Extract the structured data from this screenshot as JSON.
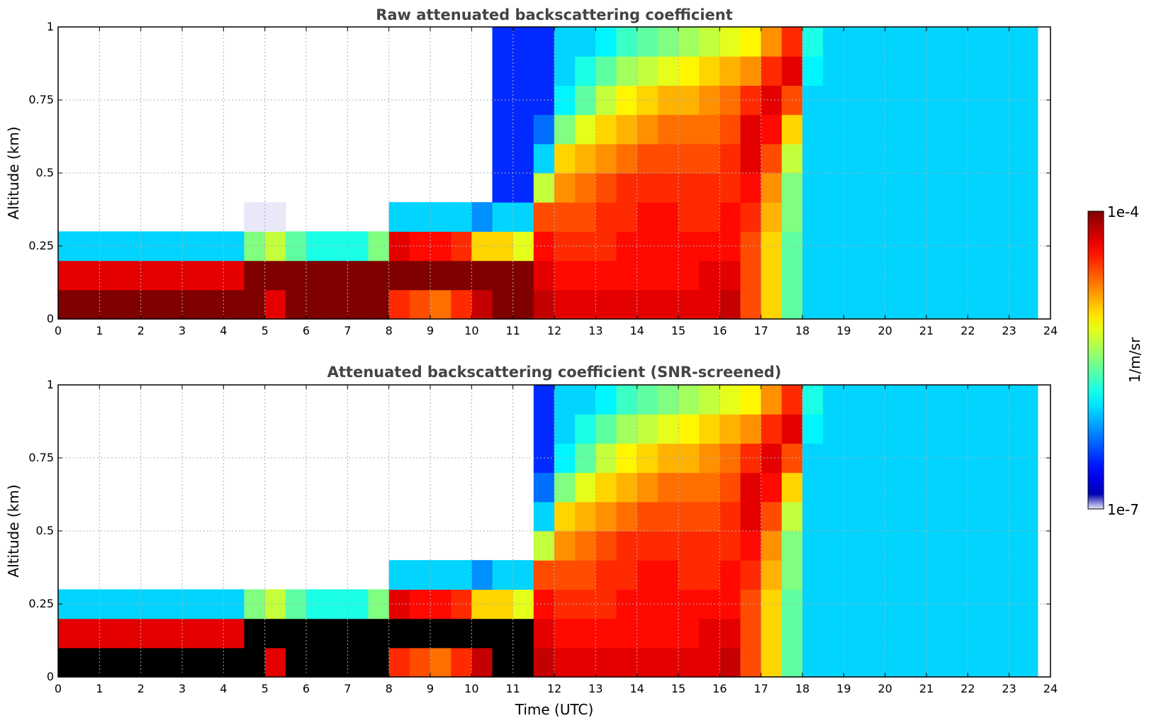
{
  "chart_data": [
    {
      "type": "heatmap",
      "title": "Raw attenuated backscattering coefficient",
      "xlabel": "",
      "ylabel": "Altitude (km)",
      "xlim": [
        0,
        24
      ],
      "ylim": [
        0,
        1
      ],
      "x_ticks": [
        "0",
        "1",
        "2",
        "3",
        "4",
        "5",
        "6",
        "7",
        "8",
        "9",
        "10",
        "11",
        "12",
        "13",
        "14",
        "15",
        "16",
        "17",
        "18",
        "19",
        "20",
        "21",
        "22",
        "23",
        "24"
      ],
      "y_ticks": [
        "0",
        "0.25",
        "0.5",
        "0.75",
        "1"
      ],
      "grid": true,
      "screened": false,
      "x": [
        0,
        0.5,
        1,
        1.5,
        2,
        2.5,
        3,
        3.5,
        4,
        4.5,
        5,
        5.5,
        6,
        6.5,
        7,
        7.5,
        8,
        8.5,
        9,
        9.5,
        10,
        10.5,
        11,
        11.5,
        12,
        12.5,
        13,
        13.5,
        14,
        14.5,
        15,
        15.5,
        16,
        16.5,
        17,
        17.5,
        18,
        18.5,
        19,
        19.5,
        20,
        20.5,
        21,
        21.5,
        22,
        22.5,
        23,
        23.5
      ],
      "y": [
        0.05,
        0.15,
        0.25,
        0.35,
        0.45,
        0.55,
        0.65,
        0.75,
        0.85,
        0.95
      ],
      "log10_values_note_units": "log10(1/m/sr)",
      "values": [
        [
          -4.0,
          -4.3,
          -6.0,
          -7.0,
          -7.0,
          -7.0,
          -7.0,
          -7.0,
          -7.0,
          -7.0
        ],
        [
          -4.0,
          -4.3,
          -6.0,
          -7.0,
          -7.0,
          -7.0,
          -7.0,
          -7.0,
          -7.0,
          -7.0
        ],
        [
          -4.0,
          -4.3,
          -6.0,
          -7.0,
          -7.0,
          -7.0,
          -7.0,
          -7.0,
          -7.0,
          -7.0
        ],
        [
          -4.0,
          -4.3,
          -6.0,
          -7.0,
          -7.0,
          -7.0,
          -7.0,
          -7.0,
          -7.0,
          -7.0
        ],
        [
          -4.0,
          -4.3,
          -6.0,
          -7.0,
          -7.0,
          -7.0,
          -7.0,
          -7.0,
          -7.0,
          -7.0
        ],
        [
          -4.0,
          -4.3,
          -6.0,
          -7.0,
          -7.0,
          -7.0,
          -7.0,
          -7.0,
          -7.0,
          -7.0
        ],
        [
          -4.0,
          -4.3,
          -6.0,
          -7.0,
          -7.0,
          -7.0,
          -7.0,
          -7.0,
          -7.0,
          -7.0
        ],
        [
          -4.0,
          -4.3,
          -6.0,
          -7.0,
          -7.0,
          -7.0,
          -7.0,
          -7.0,
          -7.0,
          -7.0
        ],
        [
          -4.0,
          -4.3,
          -6.0,
          -7.0,
          -7.0,
          -7.0,
          -7.0,
          -7.0,
          -7.0,
          -7.0
        ],
        [
          -4.0,
          -4.0,
          -5.5,
          -6.8,
          -7.0,
          -7.0,
          -7.0,
          -7.0,
          -7.0,
          -7.0
        ],
        [
          -4.3,
          -4.0,
          -5.3,
          -6.8,
          -7.0,
          -7.0,
          -7.0,
          -7.0,
          -7.0,
          -7.0
        ],
        [
          -4.0,
          -4.0,
          -5.6,
          -6.9,
          -7.0,
          -7.0,
          -7.0,
          -7.0,
          -7.0,
          -7.0
        ],
        [
          -4.0,
          -4.0,
          -5.8,
          -6.9,
          -7.0,
          -7.0,
          -7.0,
          -7.0,
          -7.0,
          -7.0
        ],
        [
          -4.0,
          -4.0,
          -5.8,
          -6.9,
          -7.0,
          -7.0,
          -7.0,
          -7.0,
          -7.0,
          -7.0
        ],
        [
          -4.0,
          -4.0,
          -5.8,
          -6.9,
          -7.0,
          -7.0,
          -7.0,
          -7.0,
          -7.0,
          -7.0
        ],
        [
          -4.0,
          -4.0,
          -5.5,
          -6.9,
          -7.0,
          -7.0,
          -7.0,
          -7.0,
          -7.0,
          -7.0
        ],
        [
          -4.5,
          -4.0,
          -4.3,
          -6.0,
          -7.0,
          -7.0,
          -7.0,
          -7.0,
          -7.0,
          -7.0
        ],
        [
          -4.6,
          -4.0,
          -4.4,
          -6.0,
          -7.0,
          -7.0,
          -7.0,
          -7.0,
          -7.0,
          -7.0
        ],
        [
          -4.7,
          -4.0,
          -4.4,
          -6.0,
          -7.0,
          -7.0,
          -7.0,
          -7.0,
          -7.0,
          -7.0
        ],
        [
          -4.5,
          -4.0,
          -4.5,
          -6.0,
          -7.0,
          -7.0,
          -7.0,
          -7.0,
          -7.0,
          -7.0
        ],
        [
          -4.2,
          -4.0,
          -5.0,
          -6.2,
          -7.0,
          -7.0,
          -7.0,
          -7.0,
          -7.0,
          -7.0
        ],
        [
          -4.0,
          -4.0,
          -5.0,
          -6.0,
          -6.5,
          -6.5,
          -6.5,
          -6.5,
          -6.5,
          -6.5
        ],
        [
          -4.0,
          -4.0,
          -5.2,
          -6.0,
          -6.5,
          -6.5,
          -6.5,
          -6.5,
          -6.5,
          -6.5
        ],
        [
          -4.2,
          -4.3,
          -4.4,
          -4.6,
          -5.3,
          -6.0,
          -6.3,
          -6.5,
          -6.5,
          -6.5
        ],
        [
          -4.3,
          -4.4,
          -4.5,
          -4.6,
          -4.8,
          -5.0,
          -5.5,
          -5.9,
          -6.0,
          -6.0
        ],
        [
          -4.3,
          -4.4,
          -4.5,
          -4.6,
          -4.7,
          -4.9,
          -5.2,
          -5.6,
          -5.8,
          -6.0
        ],
        [
          -4.3,
          -4.4,
          -4.5,
          -4.5,
          -4.6,
          -4.8,
          -5.0,
          -5.3,
          -5.6,
          -5.9
        ],
        [
          -4.3,
          -4.4,
          -4.4,
          -4.5,
          -4.5,
          -4.7,
          -4.9,
          -5.1,
          -5.4,
          -5.7
        ],
        [
          -4.3,
          -4.4,
          -4.4,
          -4.4,
          -4.5,
          -4.6,
          -4.8,
          -5.0,
          -5.3,
          -5.6
        ],
        [
          -4.3,
          -4.4,
          -4.4,
          -4.4,
          -4.5,
          -4.6,
          -4.7,
          -4.9,
          -5.2,
          -5.5
        ],
        [
          -4.3,
          -4.4,
          -4.4,
          -4.5,
          -4.5,
          -4.6,
          -4.7,
          -4.9,
          -5.1,
          -5.4
        ],
        [
          -4.3,
          -4.3,
          -4.4,
          -4.5,
          -4.5,
          -4.6,
          -4.7,
          -4.8,
          -5.0,
          -5.3
        ],
        [
          -4.2,
          -4.3,
          -4.4,
          -4.4,
          -4.5,
          -4.5,
          -4.6,
          -4.7,
          -4.9,
          -5.2
        ],
        [
          -4.6,
          -4.6,
          -4.6,
          -4.5,
          -4.4,
          -4.3,
          -4.3,
          -4.5,
          -4.8,
          -5.1
        ],
        [
          -5.0,
          -5.0,
          -5.0,
          -4.9,
          -4.8,
          -4.6,
          -4.4,
          -4.3,
          -4.5,
          -4.8
        ],
        [
          -5.6,
          -5.6,
          -5.6,
          -5.5,
          -5.5,
          -5.3,
          -5.0,
          -4.6,
          -4.3,
          -4.5
        ],
        [
          -6.0,
          -6.0,
          -6.0,
          -6.0,
          -6.0,
          -6.0,
          -6.0,
          -6.0,
          -5.9,
          -5.8
        ],
        [
          -6.0,
          -6.0,
          -6.0,
          -6.0,
          -6.0,
          -6.0,
          -6.0,
          -6.0,
          -6.0,
          -6.0
        ],
        [
          -6.0,
          -6.0,
          -6.0,
          -6.0,
          -6.0,
          -6.0,
          -6.0,
          -6.0,
          -6.0,
          -6.0
        ],
        [
          -6.0,
          -6.0,
          -6.0,
          -6.0,
          -6.0,
          -6.0,
          -6.0,
          -6.0,
          -6.0,
          -6.0
        ],
        [
          -6.0,
          -6.0,
          -6.0,
          -6.0,
          -6.0,
          -6.0,
          -6.0,
          -6.0,
          -6.0,
          -6.0
        ],
        [
          -6.0,
          -6.0,
          -6.0,
          -6.0,
          -6.0,
          -6.0,
          -6.0,
          -6.0,
          -6.0,
          -6.0
        ],
        [
          -6.0,
          -6.0,
          -6.0,
          -6.0,
          -6.0,
          -6.0,
          -6.0,
          -6.0,
          -6.0,
          -6.0
        ],
        [
          -6.0,
          -6.0,
          -6.0,
          -6.0,
          -6.0,
          -6.0,
          -6.0,
          -6.0,
          -6.0,
          -6.0
        ],
        [
          -6.0,
          -6.0,
          -6.0,
          -6.0,
          -6.0,
          -6.0,
          -6.0,
          -6.0,
          -6.0,
          -6.0
        ],
        [
          -6.0,
          -6.0,
          -6.0,
          -6.0,
          -6.0,
          -6.0,
          -6.0,
          -6.0,
          -6.0,
          -6.0
        ],
        [
          -6.0,
          -6.0,
          -6.0,
          -6.0,
          -6.0,
          -6.0,
          -6.0,
          -6.0,
          -6.0,
          -6.0
        ],
        [
          -6.0,
          -6.0,
          -6.0,
          -6.0,
          -6.0,
          -6.0,
          -6.0,
          -6.0,
          -6.0,
          -6.0
        ]
      ]
    },
    {
      "type": "heatmap",
      "title": "Attenuated backscattering coefficient (SNR-screened)",
      "xlabel": "Time (UTC)",
      "ylabel": "Altitude (km)",
      "xlim": [
        0,
        24
      ],
      "ylim": [
        0,
        1
      ],
      "x_ticks": [
        "0",
        "1",
        "2",
        "3",
        "4",
        "5",
        "6",
        "7",
        "8",
        "9",
        "10",
        "11",
        "12",
        "13",
        "14",
        "15",
        "16",
        "17",
        "18",
        "19",
        "20",
        "21",
        "22",
        "23",
        "24"
      ],
      "y_ticks": [
        "0",
        "0.25",
        "0.5",
        "0.75",
        "1"
      ],
      "grid": true,
      "screened": true,
      "saturated_color": "#000000"
    }
  ],
  "colorbar": {
    "label": "1/m/sr",
    "min_label": "1e-7",
    "max_label": "1e-4",
    "colormap": "jet",
    "low_color": "#e8e8f8",
    "high_color": "#800000"
  }
}
